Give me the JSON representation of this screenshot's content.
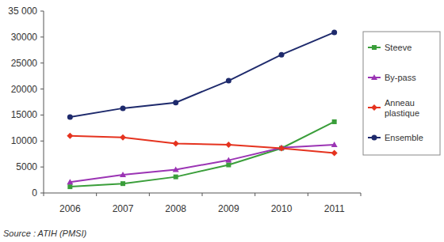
{
  "chart_data": {
    "type": "line",
    "categories": [
      "2006",
      "2007",
      "2008",
      "2009",
      "2010",
      "2011"
    ],
    "series": [
      {
        "name": "Steeve",
        "color": "#3a9e3a",
        "marker": "square",
        "values": [
          1200,
          1800,
          3100,
          5400,
          8600,
          13700
        ]
      },
      {
        "name": "By-pass",
        "color": "#9b34b4",
        "marker": "triangle",
        "values": [
          2100,
          3500,
          4500,
          6300,
          8700,
          9300
        ]
      },
      {
        "name": "Anneau plastique",
        "color": "#e5331f",
        "marker": "diamond",
        "values": [
          11000,
          10700,
          9500,
          9300,
          8600,
          7700
        ]
      },
      {
        "name": "Ensemble",
        "color": "#1e2a6c",
        "marker": "circle",
        "values": [
          14600,
          16300,
          17400,
          21600,
          26600,
          30900
        ]
      }
    ],
    "ylim": [
      0,
      35000
    ],
    "yticks": [
      0,
      5000,
      10000,
      15000,
      20000,
      25000,
      30000,
      {
        "value": 35000,
        "label": "35 000"
      }
    ],
    "grid": false,
    "legend": "right",
    "source": "Source : ATIH (PMSI)"
  }
}
